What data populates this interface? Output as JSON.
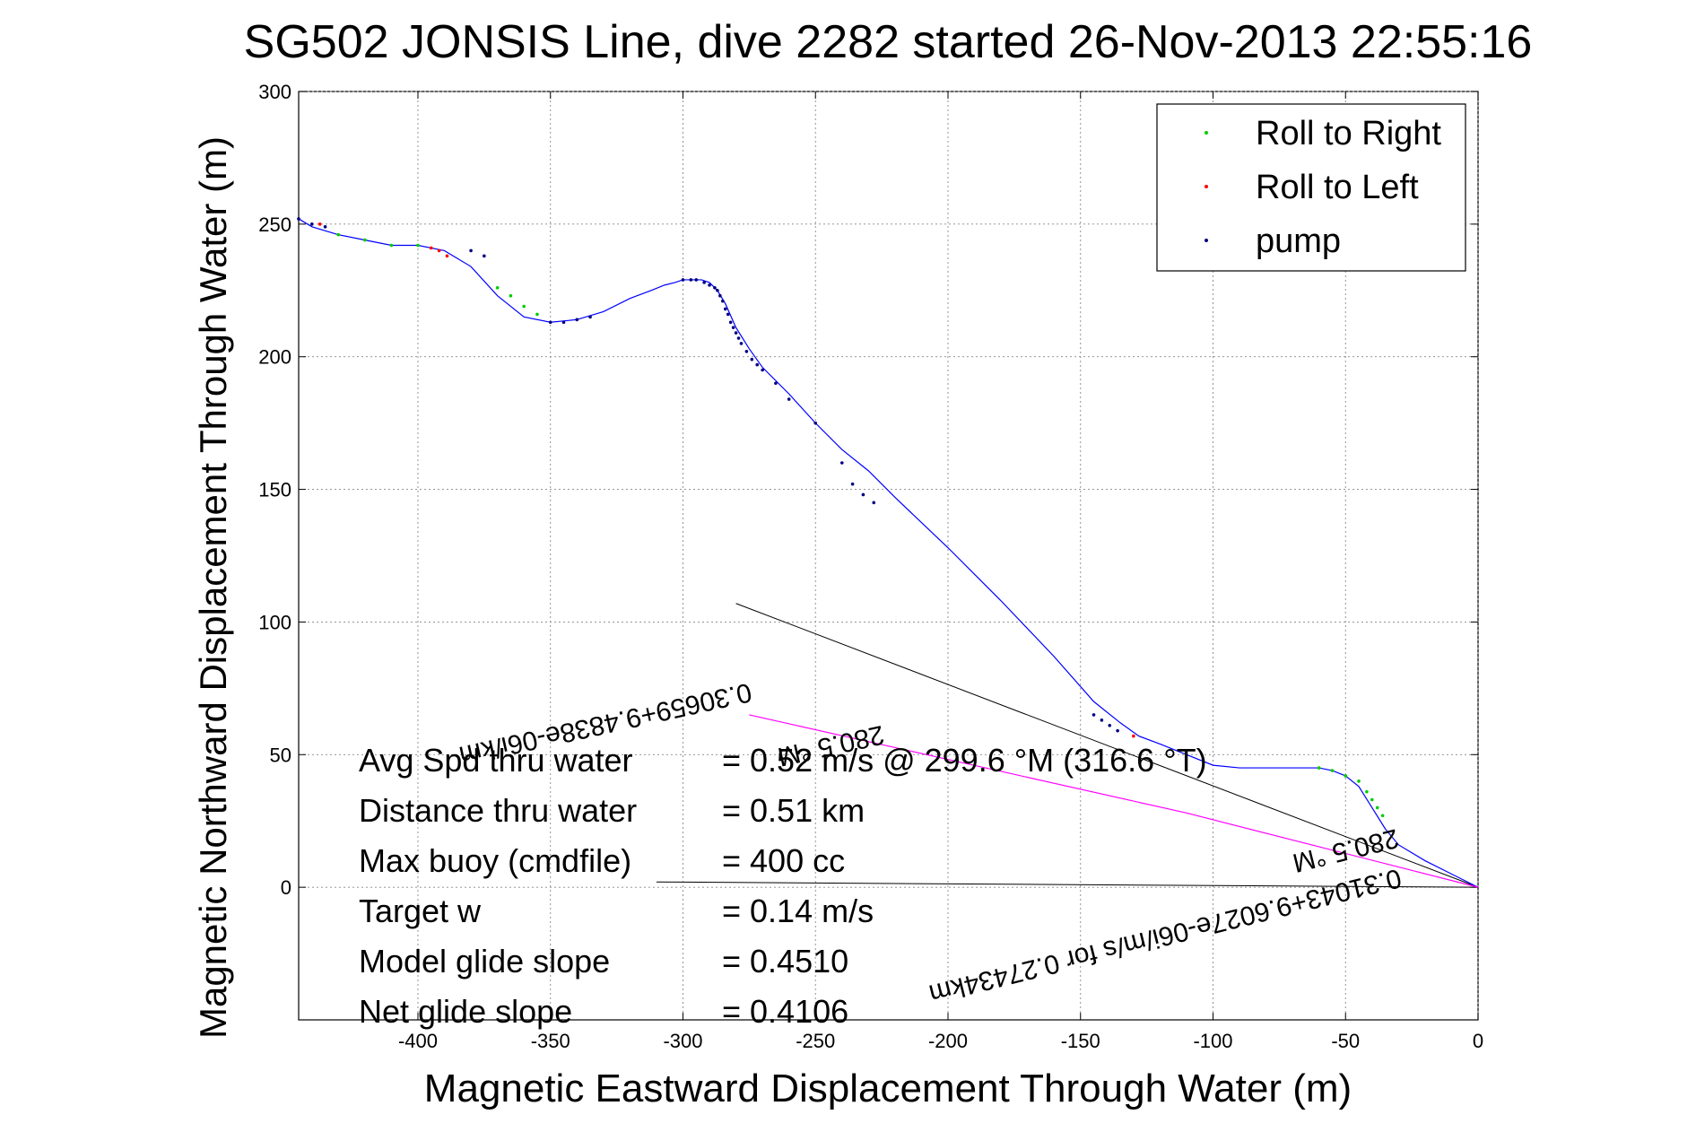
{
  "chart_data": {
    "type": "line",
    "title": "SG502 JONSIS Line, dive 2282 started 26-Nov-2013 22:55:16",
    "xlabel": "Magnetic Eastward Displacement Through Water (m)",
    "ylabel": "Magnetic Northward Displacement Through Water (m)",
    "xlim": [
      -445,
      0
    ],
    "ylim": [
      -50,
      300
    ],
    "xticks": [
      -400,
      -350,
      -300,
      -250,
      -200,
      -150,
      -100,
      -50,
      0
    ],
    "yticks": [
      0,
      50,
      100,
      150,
      200,
      250,
      300
    ],
    "grid": true,
    "legend_position": "top-right",
    "legend": [
      {
        "label": "Roll to Right",
        "color": "#00cc00"
      },
      {
        "label": "Roll to Left",
        "color": "#ff0000"
      },
      {
        "label": "pump",
        "color": "#000080"
      }
    ],
    "series": [
      {
        "color": "#0000ff",
        "x": [
          0,
          -10,
          -20,
          -30,
          -35,
          -40,
          -45,
          -50,
          -55,
          -60,
          -70,
          -80,
          -90,
          -100,
          -110,
          -120,
          -128,
          -135,
          -145,
          -160,
          -180,
          -200,
          -220,
          -230,
          -240,
          -250,
          -260,
          -270,
          -275,
          -280,
          -284,
          -287,
          -290,
          -293,
          -297,
          -300,
          -303,
          -307,
          -312,
          -320,
          -330,
          -340,
          -350,
          -360,
          -370,
          -380,
          -390,
          -400,
          -410,
          -420,
          -430,
          -440,
          -445
        ],
        "y": [
          0,
          5,
          10,
          16,
          22,
          30,
          38,
          42,
          44,
          45,
          45,
          45,
          45,
          46,
          50,
          54,
          57,
          62,
          70,
          87,
          108,
          128,
          147,
          157,
          165,
          175,
          186,
          196,
          203,
          211,
          220,
          225,
          228,
          229,
          229,
          229,
          228,
          227,
          225,
          222,
          217,
          214,
          213,
          215,
          223,
          234,
          240,
          242,
          242,
          244,
          246,
          249,
          252
        ]
      },
      {
        "color": "#ff00ff",
        "x": [
          0,
          -110,
          -275
        ],
        "y": [
          0,
          28,
          65
        ]
      }
    ],
    "pump_markers": {
      "x": [
        -445,
        -440,
        -435,
        -380,
        -375,
        -350,
        -345,
        -340,
        -335,
        -300,
        -297,
        -295,
        -292,
        -290,
        -288,
        -287,
        -286,
        -285,
        -284,
        -283,
        -282,
        -281,
        -280,
        -279,
        -278,
        -276,
        -274,
        -272,
        -270,
        -265,
        -260,
        -250,
        -240,
        -236,
        -232,
        -228,
        -145,
        -142,
        -139,
        -136
      ],
      "y": [
        252,
        250,
        249,
        240,
        238,
        213,
        213,
        214,
        215,
        229,
        229,
        229,
        228,
        227,
        226,
        225,
        223,
        221,
        218,
        216,
        213,
        211,
        209,
        207,
        205,
        202,
        199,
        197,
        195,
        190,
        184,
        175,
        160,
        152,
        148,
        145,
        65,
        63,
        61,
        59
      ]
    },
    "roll_right_markers": {
      "x": [
        -430,
        -420,
        -410,
        -400,
        -370,
        -365,
        -360,
        -355,
        -60,
        -55,
        -50,
        -45,
        -42,
        -40,
        -38,
        -36
      ],
      "y": [
        246,
        244,
        242,
        242,
        226,
        223,
        219,
        216,
        45,
        44,
        42,
        40,
        36,
        33,
        30,
        27
      ]
    },
    "roll_left_markers": {
      "x": [
        -437,
        -395,
        -392,
        -389,
        -130
      ],
      "y": [
        250,
        241,
        240,
        238,
        57
      ]
    },
    "heading_lines": [
      {
        "x": [
          0,
          -280
        ],
        "y": [
          0,
          107
        ]
      },
      {
        "x": [
          0,
          -310
        ],
        "y": [
          0,
          2
        ]
      }
    ],
    "info_lines": [
      {
        "label": "Avg Spd thru water",
        "value": "= 0.52 m/s @ 299.6 °M (316.6 °T)"
      },
      {
        "label": "Distance thru water",
        "value": "=  0.51 km"
      },
      {
        "label": "Max buoy (cmdfile)",
        "value": "= 400 cc"
      },
      {
        "label": "Target w",
        "value": "= 0.14 m/s"
      },
      {
        "label": "Model glide slope",
        "value": "= 0.4510"
      },
      {
        "label": "Net glide slope",
        "value": "= 0.4106"
      }
    ],
    "annotations": [
      {
        "text": "0.30659+9.4838e-06i/km",
        "x": -275,
        "y": 77,
        "angle": 167.5
      },
      {
        "text": "280.5 °M",
        "x": -225,
        "y": 61,
        "angle": 167.5
      },
      {
        "text": "0.31043+9.6027e-06i/m/s for 0.27434km",
        "x": -30,
        "y": 7,
        "angle": 166
      },
      {
        "text": "280.5 °M",
        "x": -31,
        "y": 22,
        "angle": 166
      }
    ]
  }
}
